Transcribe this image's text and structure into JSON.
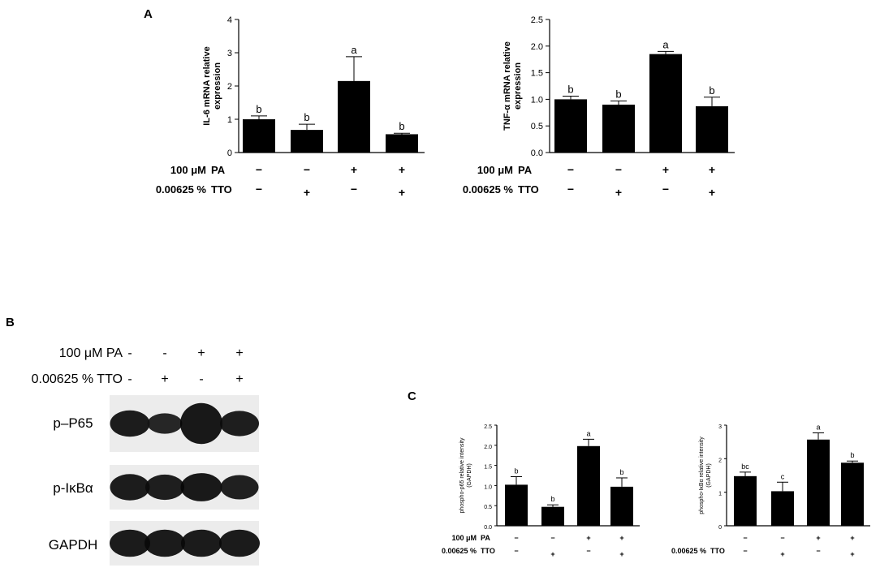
{
  "panels": {
    "A": "A",
    "B": "B",
    "C": "C"
  },
  "conditions": {
    "pa_label": "100 μM",
    "pa_agent": "PA",
    "tto_label": "0.00625 %",
    "tto_agent": "TTO",
    "pa_signs": [
      "−",
      "−",
      "+",
      "+"
    ],
    "tto_signs": [
      "−",
      "+",
      "−",
      "+"
    ]
  },
  "chart_data": [
    {
      "id": "il6",
      "type": "bar",
      "ylabel": [
        "IL-6  mRNA relative",
        "expression"
      ],
      "ylim": [
        0,
        4
      ],
      "yticks": [
        0,
        1,
        2,
        3,
        4
      ],
      "values": [
        1.0,
        0.68,
        2.15,
        0.55
      ],
      "errors": [
        0.1,
        0.17,
        0.73,
        0.03
      ],
      "labels": [
        "b",
        "b",
        "a",
        "b"
      ]
    },
    {
      "id": "tnfa",
      "type": "bar",
      "ylabel": [
        "TNF-α mRNA relative",
        "expression"
      ],
      "ylim": [
        0,
        2.5
      ],
      "yticks": [
        0.0,
        0.5,
        1.0,
        1.5,
        2.0,
        2.5
      ],
      "values": [
        1.0,
        0.9,
        1.85,
        0.87
      ],
      "errors": [
        0.06,
        0.07,
        0.05,
        0.17
      ],
      "labels": [
        "b",
        "b",
        "a",
        "b"
      ]
    },
    {
      "id": "p65",
      "type": "bar",
      "ylabel": [
        "phospho-p65 relative intensity",
        "(GAPDH)"
      ],
      "ylim": [
        0,
        2.5
      ],
      "yticks": [
        0.0,
        0.5,
        1.0,
        1.5,
        2.0,
        2.5
      ],
      "values": [
        1.02,
        0.47,
        1.98,
        0.97
      ],
      "errors": [
        0.2,
        0.05,
        0.17,
        0.22
      ],
      "labels": [
        "b",
        "b",
        "a",
        "b"
      ]
    },
    {
      "id": "ikba",
      "type": "bar",
      "ylabel": [
        "phospho-IκBα relative intensity",
        "(GAPDH)"
      ],
      "ylim": [
        0,
        3
      ],
      "yticks": [
        0,
        1,
        2,
        3
      ],
      "values": [
        1.48,
        1.03,
        2.57,
        1.88
      ],
      "errors": [
        0.12,
        0.27,
        0.2,
        0.05
      ],
      "labels": [
        "bc",
        "c",
        "a",
        "b"
      ]
    }
  ],
  "western_blot": {
    "pa_row": "100 μM PA",
    "tto_row": "0.00625 % TTO",
    "pa_signs": [
      "-",
      "-",
      "+",
      "+"
    ],
    "tto_signs": [
      "-",
      "+",
      "-",
      "+"
    ],
    "bands": [
      {
        "label": "p–P65",
        "intensity": [
          0.85,
          0.55,
          1.0,
          0.8
        ]
      },
      {
        "label": "p-IκBα",
        "intensity": [
          0.85,
          0.8,
          0.95,
          0.75
        ]
      },
      {
        "label": "GAPDH",
        "intensity": [
          0.9,
          0.9,
          0.9,
          0.9
        ]
      }
    ]
  }
}
